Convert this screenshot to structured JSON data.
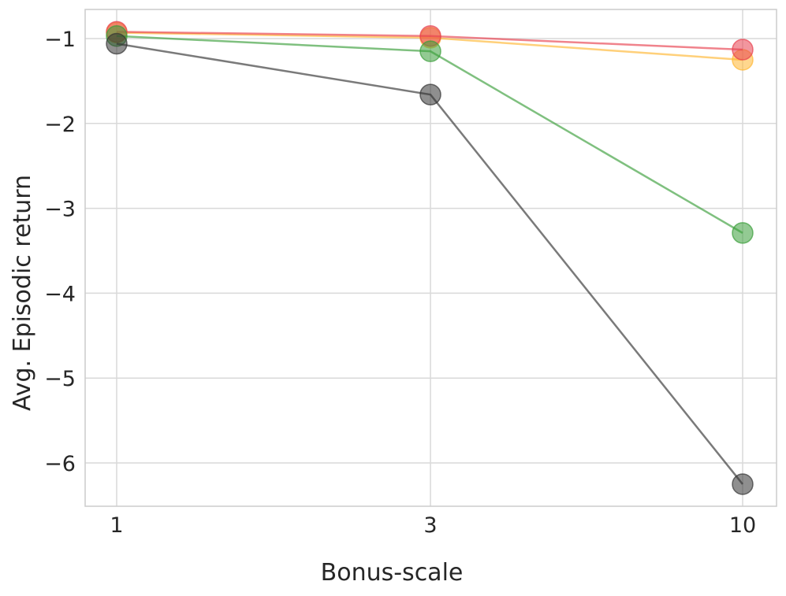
{
  "chart_data": {
    "type": "line",
    "xlabel": "Bonus-scale",
    "ylabel": "Avg. Episodic return",
    "x": [
      1,
      3,
      10
    ],
    "x_tick_labels": [
      "1",
      "3",
      "10"
    ],
    "y_ticks": [
      -1,
      -2,
      -3,
      -4,
      -5,
      -6
    ],
    "y_tick_labels": [
      "−1",
      "−2",
      "−3",
      "−4",
      "−5",
      "−6"
    ],
    "ylim": [
      -6.52,
      -0.68
    ],
    "x_scale": "categorical-evenly-spaced",
    "grid": true,
    "series": [
      {
        "color": "#ffb732",
        "values": [
          -0.93,
          -0.99,
          -1.25
        ]
      },
      {
        "color": "#e8404f",
        "values": [
          -0.92,
          -0.97,
          -1.13
        ]
      },
      {
        "color": "#3a9e3a",
        "values": [
          -0.97,
          -1.15,
          -3.29
        ]
      },
      {
        "color": "#333333",
        "values": [
          -1.06,
          -1.66,
          -6.25
        ]
      }
    ]
  }
}
